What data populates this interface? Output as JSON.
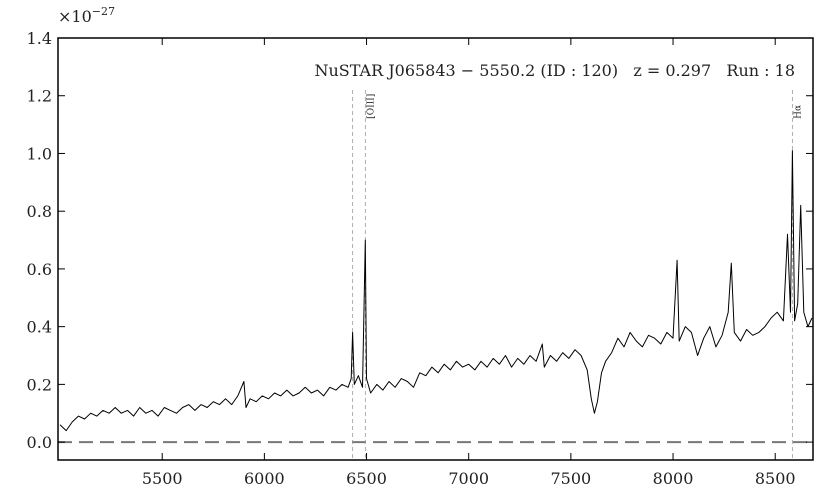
{
  "chart_data": {
    "type": "line",
    "annotation": "NuSTAR J065843 − 5550.2 (ID : 120)   z = 0.297   Run : 18",
    "y_offset": {
      "base": "×10",
      "exponent": "−27"
    },
    "color": "#000000",
    "x": [
      5000,
      5030,
      5060,
      5090,
      5120,
      5150,
      5180,
      5210,
      5240,
      5270,
      5300,
      5330,
      5360,
      5390,
      5420,
      5450,
      5480,
      5510,
      5540,
      5570,
      5600,
      5630,
      5660,
      5690,
      5720,
      5750,
      5780,
      5810,
      5840,
      5870,
      5900,
      5910,
      5930,
      5960,
      5990,
      6020,
      6050,
      6080,
      6110,
      6140,
      6170,
      6200,
      6230,
      6260,
      6290,
      6320,
      6350,
      6380,
      6410,
      6425,
      6432,
      6440,
      6460,
      6480,
      6494,
      6500,
      6520,
      6550,
      6580,
      6610,
      6640,
      6670,
      6700,
      6730,
      6760,
      6790,
      6820,
      6850,
      6880,
      6910,
      6940,
      6970,
      7000,
      7030,
      7060,
      7090,
      7120,
      7150,
      7180,
      7210,
      7240,
      7270,
      7300,
      7330,
      7360,
      7370,
      7400,
      7430,
      7460,
      7490,
      7520,
      7550,
      7580,
      7600,
      7615,
      7630,
      7650,
      7670,
      7700,
      7730,
      7760,
      7790,
      7820,
      7850,
      7880,
      7910,
      7940,
      7970,
      8000,
      8020,
      8030,
      8060,
      8090,
      8120,
      8150,
      8180,
      8210,
      8240,
      8270,
      8285,
      8300,
      8330,
      8360,
      8390,
      8420,
      8450,
      8480,
      8510,
      8540,
      8560,
      8575,
      8584,
      8595,
      8610,
      8625,
      8640,
      8660,
      8680
    ],
    "values": [
      0.06,
      0.04,
      0.07,
      0.09,
      0.08,
      0.1,
      0.09,
      0.11,
      0.1,
      0.12,
      0.1,
      0.11,
      0.09,
      0.12,
      0.1,
      0.11,
      0.09,
      0.12,
      0.11,
      0.1,
      0.12,
      0.13,
      0.11,
      0.13,
      0.12,
      0.14,
      0.13,
      0.15,
      0.13,
      0.16,
      0.21,
      0.12,
      0.15,
      0.14,
      0.16,
      0.15,
      0.17,
      0.16,
      0.18,
      0.16,
      0.17,
      0.19,
      0.17,
      0.18,
      0.16,
      0.19,
      0.18,
      0.2,
      0.19,
      0.22,
      0.38,
      0.2,
      0.23,
      0.19,
      0.7,
      0.22,
      0.17,
      0.2,
      0.18,
      0.21,
      0.19,
      0.22,
      0.21,
      0.19,
      0.24,
      0.23,
      0.26,
      0.24,
      0.27,
      0.25,
      0.28,
      0.26,
      0.27,
      0.25,
      0.28,
      0.26,
      0.29,
      0.27,
      0.3,
      0.26,
      0.29,
      0.27,
      0.3,
      0.28,
      0.34,
      0.26,
      0.3,
      0.28,
      0.31,
      0.29,
      0.32,
      0.3,
      0.25,
      0.15,
      0.1,
      0.14,
      0.24,
      0.28,
      0.31,
      0.36,
      0.33,
      0.38,
      0.35,
      0.33,
      0.37,
      0.36,
      0.34,
      0.38,
      0.36,
      0.63,
      0.35,
      0.4,
      0.38,
      0.3,
      0.36,
      0.4,
      0.33,
      0.37,
      0.45,
      0.62,
      0.38,
      0.35,
      0.39,
      0.37,
      0.38,
      0.4,
      0.43,
      0.45,
      0.42,
      0.72,
      0.45,
      1.01,
      0.42,
      0.48,
      0.82,
      0.45,
      0.4,
      0.43
    ],
    "hline": 0,
    "lines": [
      {
        "x": 6432
      },
      {
        "x": 6494,
        "label": "[OIII]"
      },
      {
        "x": 8584,
        "label": "Hα"
      }
    ],
    "xlim": [
      4990,
      8685
    ],
    "ylim": [
      -0.062,
      1.4
    ],
    "xticks": [
      5500,
      6000,
      6500,
      7000,
      7500,
      8000,
      8500
    ],
    "yticks": [
      {
        "value": 0,
        "label": "0.0"
      },
      0.2,
      0.4,
      0.6,
      0.8,
      {
        "value": 1,
        "label": "1.0"
      },
      1.2,
      1.4
    ]
  }
}
